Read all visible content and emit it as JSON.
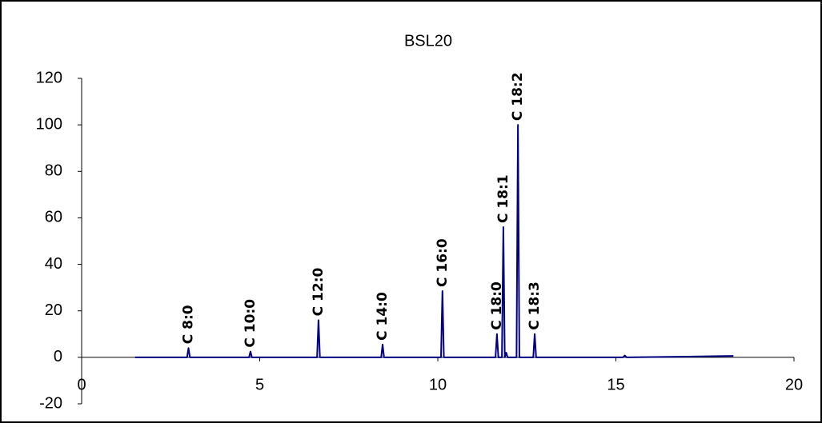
{
  "chart_data": {
    "type": "line",
    "title": "BSL20",
    "xlim": [
      0,
      20
    ],
    "xticks": [
      0,
      5,
      10,
      15,
      20
    ],
    "ylim": [
      -20,
      120
    ],
    "yticks": [
      -20,
      0,
      20,
      40,
      60,
      80,
      100,
      120
    ],
    "grid": false,
    "series": [
      {
        "color": "#000080",
        "x": [
          1.5,
          2.96,
          3.0,
          3.04,
          4.7,
          4.74,
          4.78,
          6.61,
          6.65,
          6.69,
          8.41,
          8.45,
          8.49,
          10.09,
          10.13,
          10.17,
          11.62,
          11.66,
          11.7,
          11.8,
          11.84,
          11.88,
          11.92,
          11.96,
          12.21,
          12.25,
          12.29,
          12.68,
          12.72,
          12.76,
          15.2,
          15.25,
          15.3,
          17.0,
          18.3
        ],
        "values": [
          0,
          0,
          4,
          0,
          0,
          2.5,
          0,
          0,
          16,
          0,
          0,
          5.5,
          0,
          0,
          28.5,
          0,
          0,
          10,
          0,
          0,
          56,
          0,
          2,
          0,
          0,
          100,
          0,
          0,
          10,
          0,
          0,
          0.8,
          0,
          0.3,
          0.6
        ]
      }
    ],
    "annotations": [
      {
        "text": "C 8:0",
        "x": 3.0,
        "y": 4
      },
      {
        "text": "C 10:0",
        "x": 4.74,
        "y": 2.5
      },
      {
        "text": "C 12:0",
        "x": 6.65,
        "y": 16
      },
      {
        "text": "C 14:0",
        "x": 8.45,
        "y": 5.5
      },
      {
        "text": "C 16:0",
        "x": 10.13,
        "y": 28.5
      },
      {
        "text": "C 18:0",
        "x": 11.66,
        "y": 10
      },
      {
        "text": "C 18:1",
        "x": 11.84,
        "y": 56
      },
      {
        "text": "C 18:2",
        "x": 12.25,
        "y": 100
      },
      {
        "text": "C 18:3",
        "x": 12.72,
        "y": 10
      }
    ]
  }
}
